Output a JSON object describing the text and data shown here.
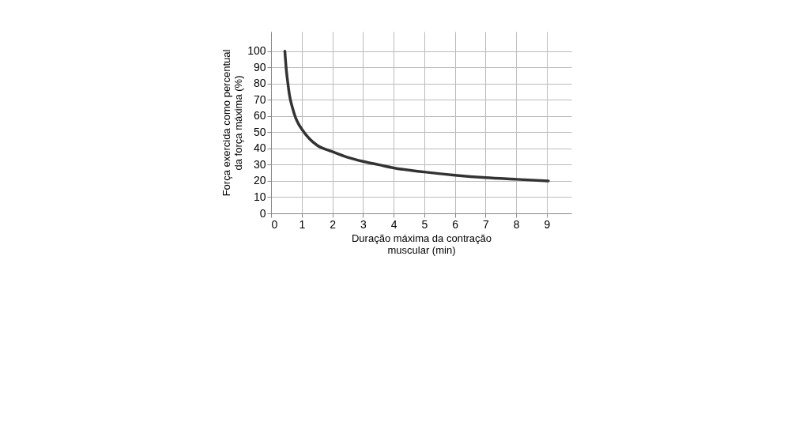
{
  "chart_data": {
    "type": "line",
    "xlabel": "Duração máxima da contração\nmuscular (min)",
    "ylabel": "Força exercida como percentual\nda força máxima (%)",
    "series": [
      {
        "color": "#333333",
        "x": [
          0.45,
          0.5,
          0.55,
          0.6,
          0.7,
          0.8,
          0.9,
          1,
          1.25,
          1.5,
          2,
          2.5,
          3,
          3.5,
          4,
          5,
          6,
          7,
          8,
          9.05
        ],
        "values": [
          100,
          88,
          80,
          73,
          65,
          59,
          55,
          52,
          46,
          42,
          38,
          34.5,
          32,
          30,
          28,
          25.5,
          23.5,
          22,
          21,
          20
        ]
      }
    ],
    "xlim": [
      0,
      9.8
    ],
    "ylim": [
      0,
      112
    ],
    "xticks": [
      0,
      1,
      2,
      3,
      4,
      5,
      6,
      7,
      8,
      9
    ],
    "yticks": [
      0,
      10,
      20,
      30,
      40,
      50,
      60,
      70,
      80,
      90,
      100
    ],
    "grid": true,
    "marker": "none",
    "line_style": "solid"
  }
}
